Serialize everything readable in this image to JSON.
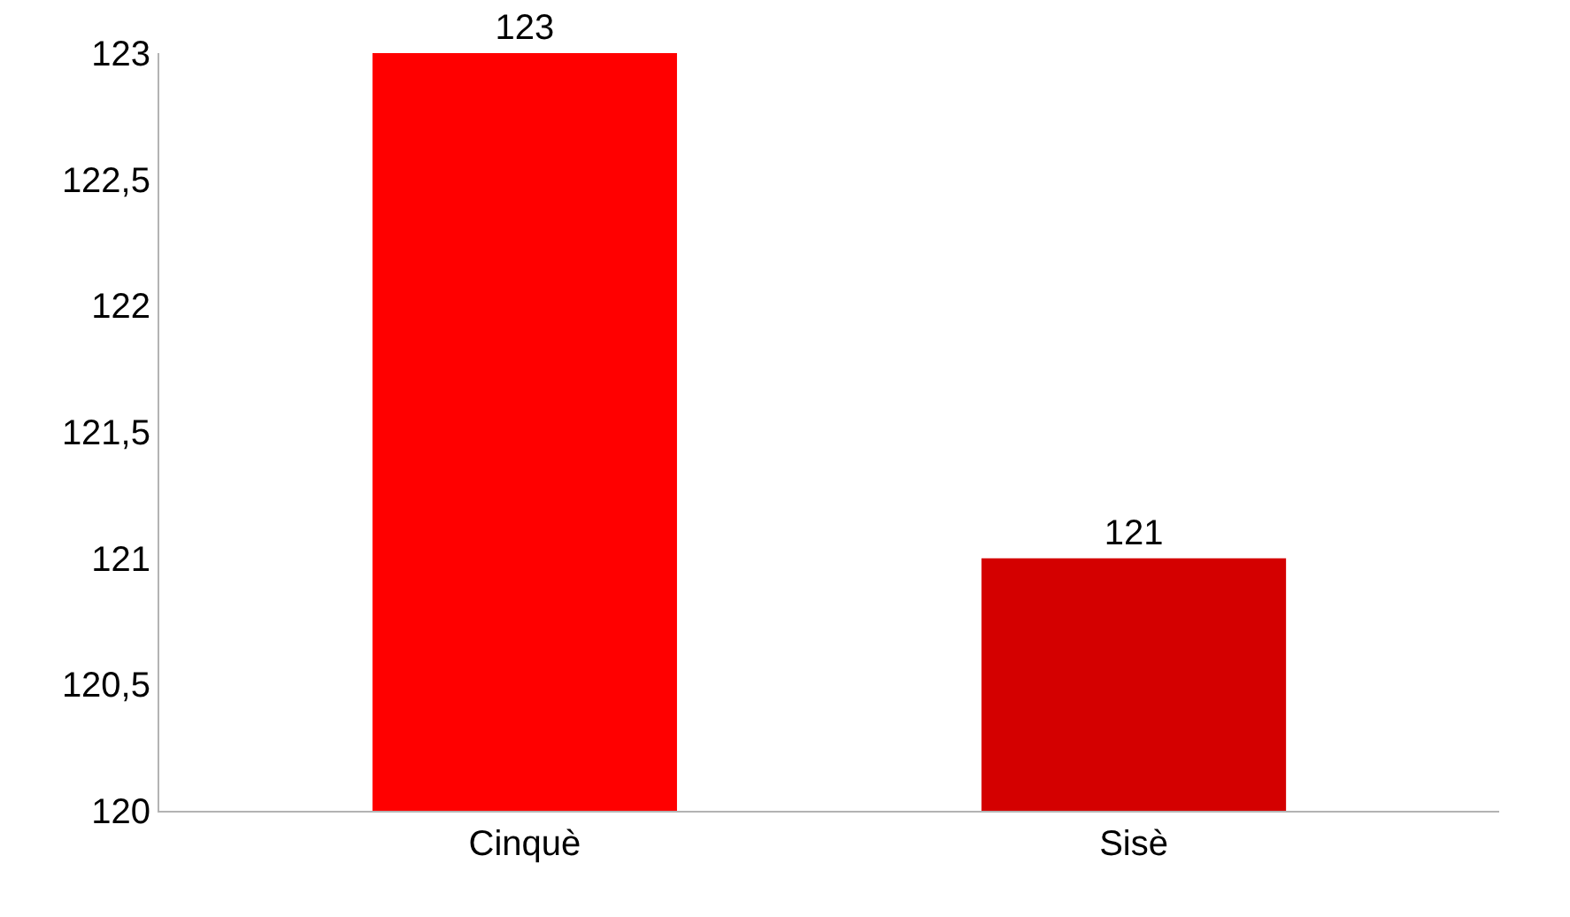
{
  "chart_data": {
    "type": "bar",
    "categories": [
      "Cinquè",
      "Sisè"
    ],
    "values": [
      123,
      121
    ],
    "colors": [
      "#ff0000",
      "#d40000"
    ],
    "ylim": [
      120,
      123
    ],
    "yticks": [
      120,
      {
        "value": 120.5,
        "label": "120,5"
      },
      121,
      {
        "value": 121.5,
        "label": "121,5"
      },
      122,
      {
        "value": 122.5,
        "label": "122,5"
      },
      123
    ],
    "data_labels": true
  }
}
